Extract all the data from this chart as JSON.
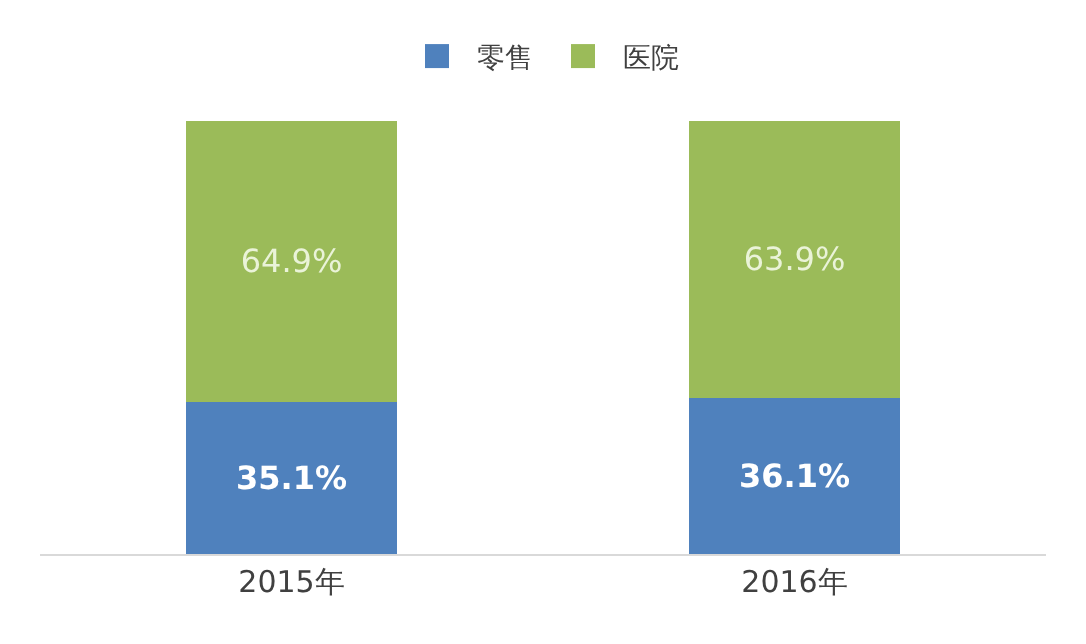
{
  "chart_data": {
    "type": "bar",
    "stacked": true,
    "categories": [
      "2015年",
      "2016年"
    ],
    "series": [
      {
        "name": "零售",
        "color": "#4f81bd",
        "values": [
          35.1,
          36.1
        ],
        "value_labels": [
          "35.1%",
          "36.1%"
        ]
      },
      {
        "name": "医院",
        "color": "#9bbb59",
        "values": [
          64.9,
          63.9
        ],
        "value_labels": [
          "64.9%",
          "63.9%"
        ]
      }
    ],
    "legend": "top",
    "tick_labels": "x"
  }
}
